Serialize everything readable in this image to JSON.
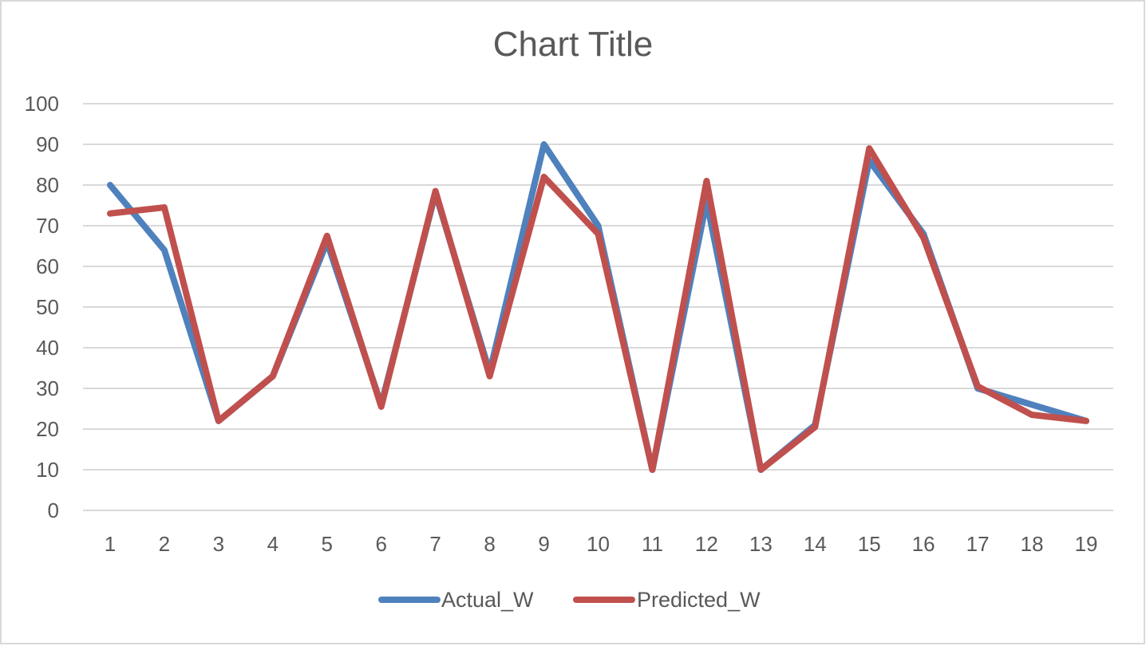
{
  "chart_data": {
    "type": "line",
    "title": "Chart Title",
    "xlabel": "",
    "ylabel": "",
    "categories": [
      "1",
      "2",
      "3",
      "4",
      "5",
      "6",
      "7",
      "8",
      "9",
      "10",
      "11",
      "12",
      "13",
      "14",
      "15",
      "16",
      "17",
      "18",
      "19"
    ],
    "ylim": [
      0,
      100
    ],
    "yticks": [
      "0",
      "10",
      "20",
      "30",
      "40",
      "50",
      "60",
      "70",
      "80",
      "90",
      "100"
    ],
    "grid": true,
    "legend_position": "bottom",
    "series": [
      {
        "name": "Actual_W",
        "color": "#4f81bd",
        "values": [
          80,
          64,
          22,
          33,
          66,
          26,
          78,
          34,
          90,
          70,
          10,
          76,
          10,
          21,
          86,
          68,
          30,
          26,
          22
        ]
      },
      {
        "name": "Predicted_W",
        "color": "#c0504d",
        "values": [
          73,
          74.5,
          22,
          33,
          67.5,
          25.5,
          78.5,
          33,
          82,
          68,
          10,
          81,
          10,
          20.5,
          89,
          67,
          30.5,
          23.5,
          22
        ]
      }
    ]
  }
}
